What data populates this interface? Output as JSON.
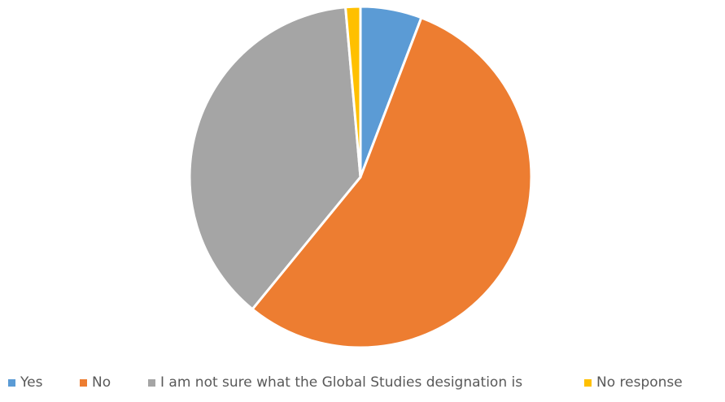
{
  "chart_data": {
    "type": "pie",
    "title": "",
    "categories": [
      "Yes",
      "No",
      "I am not sure what the Global Studies designation is",
      "No response"
    ],
    "values": [
      5.8,
      55.1,
      37.7,
      1.4
    ],
    "colors": [
      "#5B9BD5",
      "#ED7D31",
      "#A5A5A5",
      "#FFC000"
    ],
    "legend_position": "bottom",
    "start_angle": "12 o'clock",
    "direction": "clockwise"
  }
}
